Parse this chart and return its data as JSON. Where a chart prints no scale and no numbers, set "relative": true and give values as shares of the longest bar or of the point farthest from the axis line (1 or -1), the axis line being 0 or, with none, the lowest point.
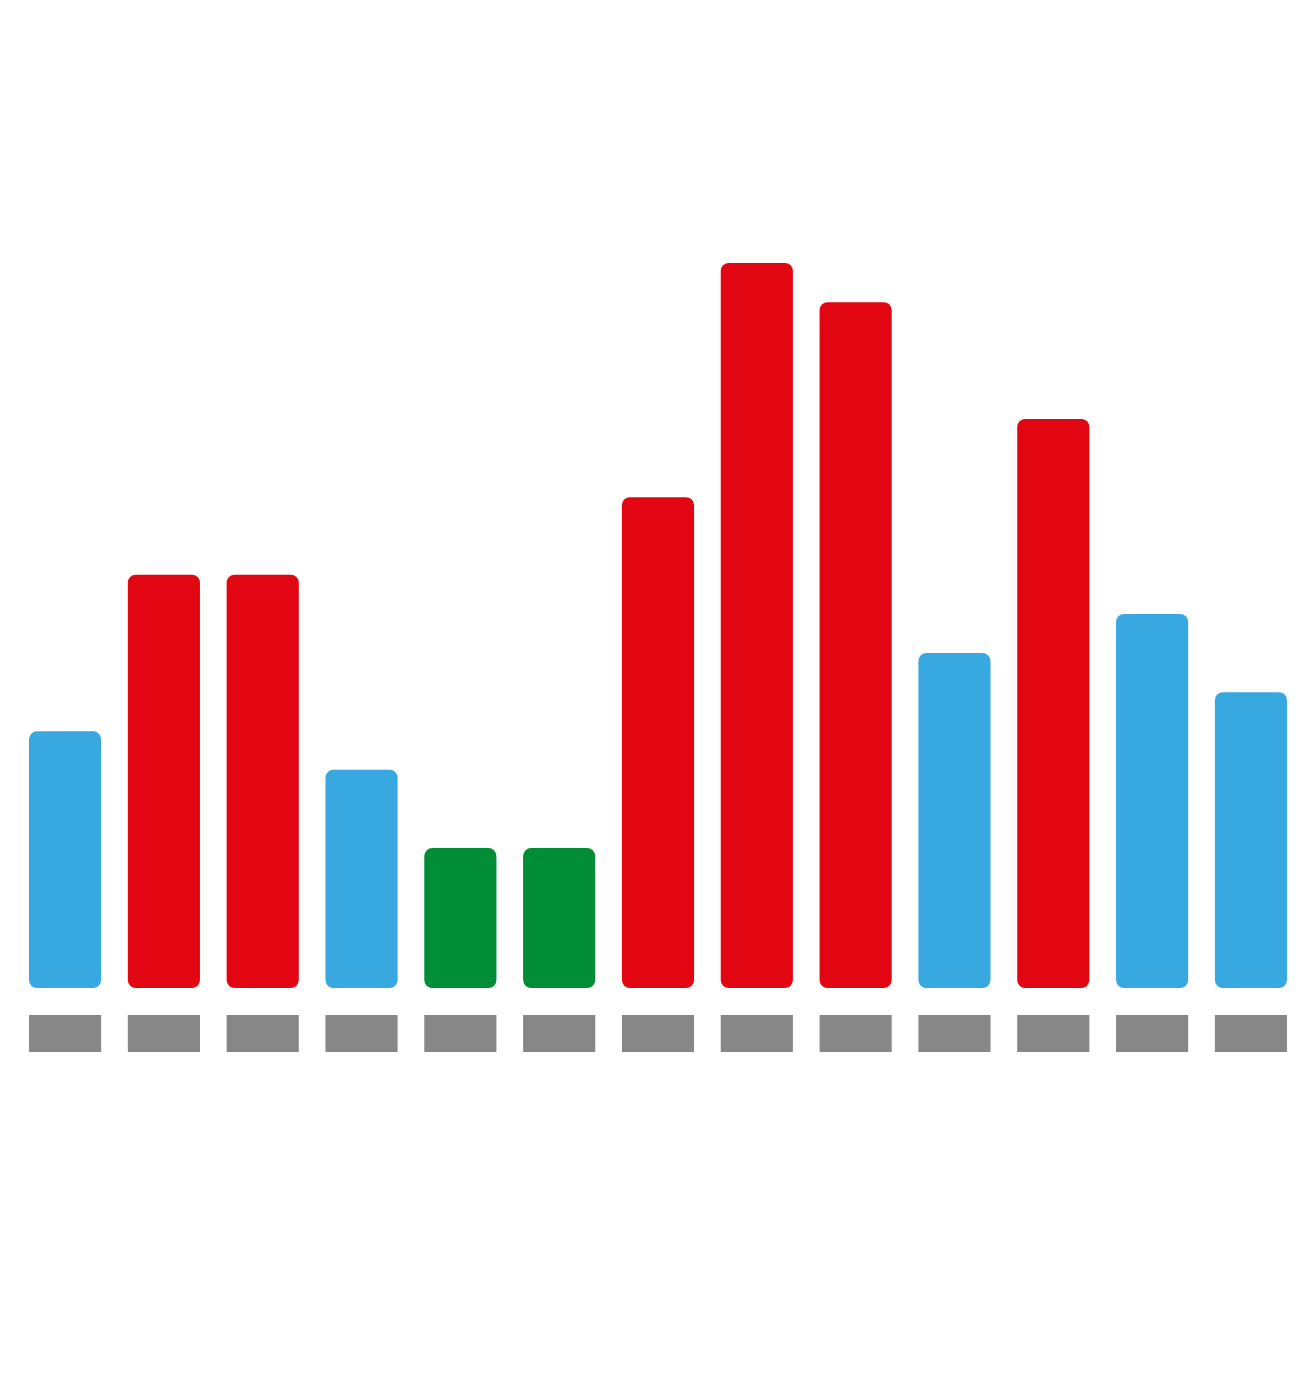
{
  "chart_data": {
    "type": "bar",
    "relative": true,
    "categories": [
      null,
      null,
      null,
      null,
      null,
      null,
      null,
      null,
      null,
      null,
      null,
      null,
      null
    ],
    "values": [
      0.354,
      0.57,
      0.57,
      0.301,
      0.193,
      0.193,
      0.677,
      1,
      0.946,
      0.462,
      0.785,
      0.516,
      0.408
    ],
    "colors": [
      "#38a8e0",
      "#e20613",
      "#e20613",
      "#38a8e0",
      "#008d36",
      "#008d36",
      "#e20613",
      "#e20613",
      "#e20613",
      "#38a8e0",
      "#e20613",
      "#38a8e0",
      "#38a8e0"
    ]
  }
}
